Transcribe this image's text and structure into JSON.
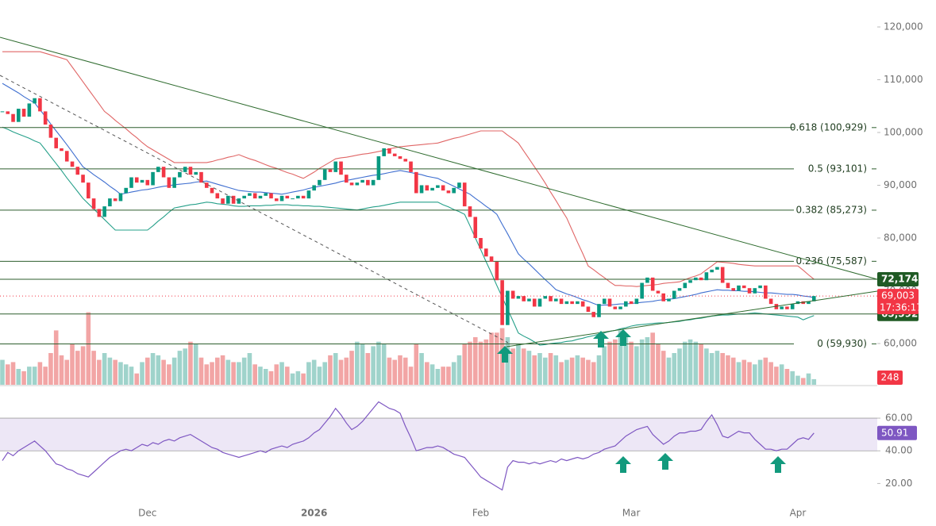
{
  "chart_data": [
    {
      "type": "candlestick",
      "categories": [
        null,
        null,
        null,
        null,
        null,
        null,
        null,
        null,
        null,
        null,
        null,
        null,
        null,
        null,
        null,
        null,
        null,
        null,
        null,
        null,
        null,
        null,
        null,
        null,
        null,
        null,
        null,
        "Dec",
        null,
        null,
        null,
        null,
        null,
        null,
        null,
        null,
        null,
        null,
        null,
        null,
        null,
        null,
        null,
        null,
        null,
        null,
        null,
        null,
        null,
        null,
        null,
        null,
        null,
        null,
        null,
        null,
        null,
        null,
        "2026",
        null,
        null,
        null,
        null,
        null,
        null,
        null,
        null,
        null,
        null,
        null,
        null,
        null,
        null,
        null,
        null,
        null,
        null,
        null,
        null,
        null,
        null,
        null,
        null,
        null,
        null,
        null,
        null,
        null,
        null,
        "Feb",
        null,
        null,
        null,
        null,
        null,
        null,
        null,
        null,
        null,
        null,
        null,
        null,
        null,
        null,
        null,
        null,
        null,
        null,
        null,
        null,
        null,
        null,
        null,
        null,
        null,
        null,
        null,
        "Mar",
        null,
        null,
        null,
        null,
        null,
        null,
        null,
        null,
        null,
        null,
        null,
        null,
        null,
        null,
        null,
        null,
        null,
        null,
        null,
        null,
        null,
        null,
        null,
        null,
        null,
        null,
        null,
        null,
        null,
        null,
        "Apr",
        null,
        null,
        null
      ],
      "values": [
        104000,
        103500,
        102000,
        104500,
        103000,
        105500,
        106500,
        104000,
        101500,
        99000,
        97000,
        96500,
        94500,
        93500,
        92000,
        90500,
        87500,
        85500,
        84000,
        86000,
        87500,
        87000,
        88500,
        89500,
        91500,
        90500,
        91000,
        90000,
        92500,
        93500,
        91500,
        89500,
        91500,
        92500,
        93500,
        92000,
        92500,
        90500,
        89500,
        88500,
        87500,
        86500,
        88000,
        86500,
        87500,
        88000,
        88500,
        87500,
        88000,
        88500,
        87500,
        87000,
        88000,
        87500,
        87500,
        88000,
        87500,
        89000,
        90000,
        91000,
        93000,
        92500,
        94500,
        92000,
        90500,
        90000,
        90500,
        91000,
        90000,
        91000,
        95500,
        97000,
        96000,
        95500,
        95000,
        94500,
        92500,
        88500,
        90000,
        89000,
        89500,
        90000,
        89000,
        88500,
        89500,
        90500,
        86000,
        84000,
        80000,
        78000,
        76500,
        75500,
        72000,
        63500,
        70000,
        68500,
        69000,
        68000,
        68500,
        67000,
        68500,
        69000,
        68000,
        68500,
        67500,
        68000,
        67500,
        68000,
        67000,
        66000,
        65000,
        67500,
        68500,
        67000,
        66500,
        67000,
        68000,
        67500,
        68500,
        71500,
        72500,
        70000,
        69500,
        68000,
        68500,
        70000,
        70500,
        71500,
        72000,
        72500,
        72000,
        73500,
        74000,
        74500,
        71500,
        70500,
        70000,
        71000,
        70500,
        69500,
        70500,
        71000,
        68500,
        67500,
        66500,
        67000,
        66500,
        67500,
        68000,
        67500,
        68000,
        69003
      ],
      "up_color": "#089981",
      "down_color": "#f23645",
      "series": [
        {
          "color": "#e06666",
          "values": [
            115300,
            115300,
            115300,
            115300,
            115300,
            115300,
            115300,
            115300,
            115000,
            114700,
            114400,
            114100,
            113800,
            112400,
            111000,
            109600,
            108200,
            106800,
            105400,
            104000,
            103200,
            102300,
            101500,
            100700,
            99800,
            99000,
            98100,
            97300,
            96700,
            96100,
            95500,
            94900,
            94300,
            94300,
            94300,
            94300,
            94300,
            94300,
            94300,
            94500,
            94800,
            95000,
            95300,
            95500,
            95800,
            95400,
            95000,
            94700,
            94300,
            93900,
            93500,
            93200,
            92800,
            92400,
            92100,
            91700,
            91300,
            91900,
            92500,
            93200,
            93800,
            94400,
            95000,
            95200,
            95300,
            95500,
            95700,
            95900,
            96000,
            96200,
            96400,
            96600,
            96900,
            97100,
            97300,
            97400,
            97500,
            97600,
            97700,
            97800,
            97900,
            98000,
            98300,
            98600,
            98900,
            99100,
            99400,
            99700,
            100000,
            100300,
            100300,
            100300,
            100300,
            100300,
            99500,
            98800,
            98000,
            96500,
            95000,
            93500,
            92000,
            90400,
            88700,
            87100,
            85400,
            83800,
            81500,
            79200,
            77000,
            74700,
            74000,
            73200,
            72500,
            71700,
            71000,
            71000,
            70900,
            70900,
            70800,
            70900,
            71000,
            71100,
            71200,
            71400,
            71500,
            71600,
            71700,
            72100,
            72500,
            72800,
            73200,
            74000,
            74700,
            75500,
            75400,
            75300,
            75200,
            75000,
            74900,
            74800,
            74700,
            74700,
            74700,
            74700,
            74700,
            74700,
            74700,
            74700,
            74700,
            73900,
            73000,
            72200
          ]
        },
        {
          "color": "#3f6fd0",
          "values": [
            109300,
            108700,
            108100,
            107500,
            106800,
            106200,
            105600,
            104300,
            103000,
            101600,
            100300,
            99000,
            97700,
            96300,
            94900,
            93500,
            92800,
            92000,
            91300,
            90600,
            89800,
            89100,
            88300,
            88500,
            88700,
            88900,
            89100,
            89200,
            89400,
            89600,
            89800,
            89900,
            90100,
            90200,
            90300,
            90400,
            90600,
            90700,
            90800,
            90500,
            90200,
            89900,
            89600,
            89300,
            89000,
            88900,
            88800,
            88700,
            88700,
            88600,
            88500,
            88400,
            88300,
            88500,
            88700,
            88900,
            89100,
            89400,
            89600,
            89800,
            90000,
            90200,
            90400,
            90700,
            90900,
            91100,
            91300,
            91500,
            91700,
            91900,
            92000,
            92200,
            92400,
            92600,
            92800,
            92600,
            92400,
            92200,
            92000,
            91700,
            91500,
            91300,
            90800,
            90300,
            89800,
            89300,
            88800,
            88300,
            87500,
            86800,
            86000,
            85300,
            84500,
            82600,
            80800,
            78900,
            77000,
            76000,
            75100,
            74100,
            73100,
            72100,
            71200,
            70200,
            69800,
            69400,
            69100,
            68700,
            68300,
            68000,
            67600,
            67200,
            67300,
            67300,
            67400,
            67500,
            67500,
            67600,
            67700,
            67800,
            67900,
            68000,
            68200,
            68300,
            68400,
            68500,
            68700,
            68900,
            69100,
            69300,
            69600,
            69800,
            70000,
            70200,
            70100,
            70100,
            70000,
            70000,
            69900,
            69900,
            69800,
            69700,
            69600,
            69600,
            69500,
            69400,
            69300,
            69300,
            69200,
            69000,
            68900,
            68700
          ]
        },
        {
          "color": "#26a08a",
          "values": [
            101000,
            100600,
            100100,
            99700,
            99300,
            98900,
            98400,
            98000,
            96700,
            95400,
            94100,
            92800,
            91400,
            90100,
            88800,
            87500,
            86500,
            85500,
            84500,
            83500,
            82500,
            81500,
            81500,
            81500,
            81500,
            81500,
            81500,
            81500,
            82300,
            83200,
            84000,
            84900,
            85700,
            85900,
            86100,
            86300,
            86400,
            86600,
            86800,
            86700,
            86500,
            86400,
            86300,
            86100,
            86000,
            86000,
            86100,
            86100,
            86100,
            86200,
            86200,
            86300,
            86300,
            86300,
            86200,
            86200,
            86100,
            86100,
            86000,
            86000,
            85900,
            85800,
            85700,
            85600,
            85500,
            85400,
            85300,
            85500,
            85700,
            85900,
            86000,
            86200,
            86400,
            86600,
            86800,
            86800,
            86800,
            86800,
            86800,
            86800,
            86800,
            86800,
            86300,
            85900,
            85400,
            85000,
            84500,
            82300,
            80000,
            77800,
            75500,
            73300,
            71000,
            68800,
            66500,
            64300,
            62000,
            61400,
            60900,
            60300,
            59700,
            59800,
            60000,
            60100,
            60200,
            60400,
            60500,
            60800,
            61000,
            61300,
            61500,
            61800,
            62000,
            62300,
            62500,
            62800,
            63000,
            63300,
            63500,
            63600,
            63700,
            63800,
            63900,
            63900,
            64000,
            64100,
            64200,
            64400,
            64500,
            64700,
            64800,
            65000,
            65200,
            65300,
            65400,
            65400,
            65500,
            65600,
            65600,
            65700,
            65800,
            65700,
            65600,
            65500,
            65400,
            65300,
            65200,
            65100,
            65000,
            64500,
            64900,
            65300
          ]
        }
      ],
      "ylim": [
        52180,
        125110
      ],
      "yticks": [
        {
          "value": 60000,
          "label": "60,000"
        },
        {
          "value": 70000,
          "label": "70,000"
        },
        {
          "value": 80000,
          "label": "80,000"
        },
        {
          "value": 90000,
          "label": "90,000"
        },
        {
          "value": 100000,
          "label": "100,000"
        },
        {
          "value": 110000,
          "label": "110,000"
        },
        {
          "value": 120000,
          "label": "120,000"
        }
      ],
      "levels": [
        {
          "value": 100929,
          "label": "0.618 (100,929)"
        },
        {
          "value": 93101,
          "label": "0.5 (93,101)"
        },
        {
          "value": 85273,
          "label": "0.382 (85,273)"
        },
        {
          "value": 75587,
          "label": "0.236 (75,587)"
        },
        {
          "value": 59930,
          "label": "0 (59,930)"
        }
      ],
      "level_color": "#2e5e2e",
      "price_tags": [
        {
          "value": 72174,
          "label": "72,174"
        },
        {
          "value": 65592,
          "label": "65,592"
        }
      ],
      "last_price": {
        "value": 69003,
        "label": "69,003"
      },
      "countdown": "17:36:17"
    },
    {
      "type": "volume",
      "values": [
        1100,
        900,
        1000,
        700,
        600,
        800,
        800,
        1000,
        800,
        1400,
        2400,
        1300,
        1100,
        1800,
        1500,
        1700,
        3200,
        1500,
        1100,
        1400,
        1200,
        1100,
        1000,
        900,
        800,
        500,
        1000,
        1200,
        1400,
        1300,
        1100,
        900,
        1200,
        1500,
        1600,
        1900,
        1800,
        1200,
        900,
        1000,
        1200,
        1300,
        1100,
        1000,
        1000,
        1200,
        1400,
        900,
        800,
        700,
        600,
        900,
        1000,
        800,
        500,
        600,
        500,
        1000,
        1100,
        800,
        1000,
        1300,
        1400,
        1100,
        1200,
        1500,
        1900,
        1800,
        1400,
        1700,
        1900,
        1800,
        1200,
        1100,
        1300,
        1200,
        800,
        1800,
        1400,
        1000,
        900,
        700,
        800,
        800,
        1000,
        1300,
        1800,
        1900,
        2100,
        1900,
        2000,
        2300,
        2300,
        2500,
        2100,
        1600,
        1800,
        1600,
        1500,
        1300,
        1400,
        1200,
        1400,
        1300,
        1000,
        1100,
        1200,
        1300,
        1200,
        1100,
        1000,
        1300,
        1700,
        1900,
        2000,
        2400,
        2200,
        1900,
        1700,
        2000,
        2100,
        2300,
        1800,
        1500,
        1200,
        1400,
        1600,
        1900,
        2000,
        1900,
        1800,
        1600,
        1400,
        1500,
        1400,
        1300,
        1200,
        1000,
        1100,
        1000,
        900,
        1100,
        1200,
        1000,
        800,
        900,
        700,
        600,
        400,
        300,
        500,
        248
      ],
      "ylim": [
        0,
        3500
      ],
      "up_color": "#9fd3cb",
      "down_color": "#f2a5a5"
    },
    {
      "type": "line",
      "values": [
        34,
        39,
        37,
        40,
        42,
        44,
        46,
        43,
        40,
        36,
        32,
        31,
        29,
        28,
        26,
        25,
        24,
        27,
        30,
        33,
        36,
        38,
        40,
        41,
        40,
        42,
        44,
        43,
        45,
        44,
        46,
        47,
        46,
        48,
        49,
        50,
        48,
        46,
        44,
        42,
        41,
        39,
        38,
        37,
        36,
        37,
        38,
        39,
        40,
        39,
        41,
        42,
        43,
        42,
        44,
        45,
        46,
        48,
        51,
        53,
        57,
        61,
        66,
        62,
        57,
        53,
        55,
        58,
        62,
        66,
        70,
        68,
        66,
        65,
        63,
        55,
        48,
        40,
        41,
        42,
        42,
        43,
        42,
        40,
        38,
        37,
        36,
        32,
        28,
        24,
        22,
        20,
        18,
        16,
        30,
        34,
        33,
        33,
        32,
        33,
        32,
        33,
        34,
        33,
        35,
        34,
        35,
        36,
        35,
        36,
        38,
        39,
        41,
        42,
        43,
        46,
        49,
        51,
        53,
        54,
        55,
        50,
        47,
        44,
        46,
        49,
        51,
        51,
        52,
        52,
        53,
        58,
        62,
        56,
        49,
        48,
        50,
        52,
        51,
        51,
        47,
        44,
        41,
        41,
        40,
        41,
        41,
        44,
        47,
        48,
        47,
        50.91
      ],
      "color": "#7e57c2",
      "ylim": [
        10,
        78
      ],
      "yticks": [
        {
          "value": 20,
          "label": "20.00"
        },
        {
          "value": 40,
          "label": "40.00"
        },
        {
          "value": 60,
          "label": "60.00"
        }
      ],
      "band": [
        40,
        60
      ]
    }
  ]
}
